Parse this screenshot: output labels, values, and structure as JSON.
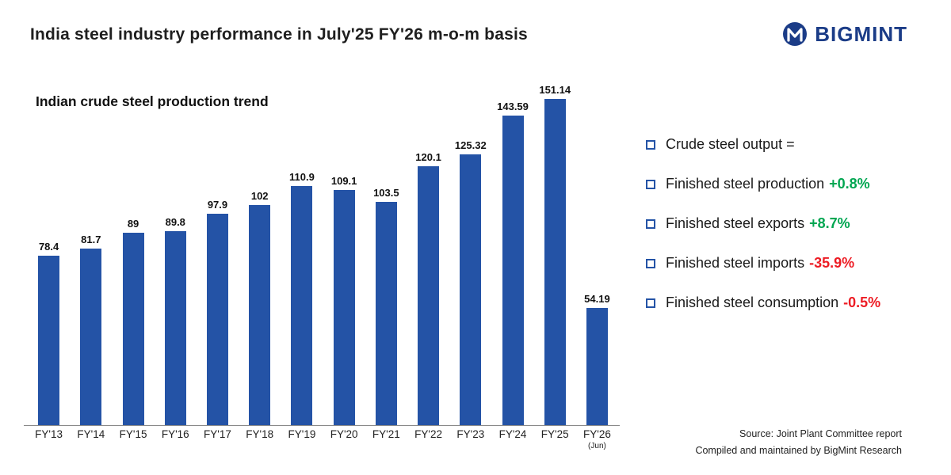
{
  "header": {
    "title": "India steel industry performance in July'25  FY'26 m-o-m basis",
    "brand": "BIGMINT"
  },
  "chart_data": {
    "type": "bar",
    "title": "Indian crude steel production trend",
    "categories": [
      "FY'13",
      "FY'14",
      "FY'15",
      "FY'16",
      "FY'17",
      "FY'18",
      "FY'19",
      "FY'20",
      "FY'21",
      "FY'22",
      "FY'23",
      "FY'24",
      "FY'25",
      "FY'26"
    ],
    "values": [
      78.4,
      81.7,
      89,
      89.8,
      97.9,
      102,
      110.9,
      109.1,
      103.5,
      120.1,
      125.32,
      143.59,
      151.14,
      54.19
    ],
    "value_labels": [
      "78.4",
      "81.7",
      "89",
      "89.8",
      "97.9",
      "102",
      "110.9",
      "109.1",
      "103.5",
      "120.1",
      "125.32",
      "143.59",
      "151.14",
      "54.19"
    ],
    "last_category_note": "(Jun)",
    "xlabel": "",
    "ylabel": "",
    "ylim": [
      0,
      160
    ],
    "grid": false,
    "legend_position": "none",
    "bar_color": "#2453a6"
  },
  "annotations": {
    "items": [
      {
        "label": "Crude steel output =",
        "delta": "",
        "delta_color": ""
      },
      {
        "label": "Finished steel production",
        "delta": "+0.8%",
        "delta_color": "#00a651"
      },
      {
        "label": "Finished steel exports",
        "delta": "+8.7%",
        "delta_color": "#00a651"
      },
      {
        "label": "Finished steel imports",
        "delta": "-35.9%",
        "delta_color": "#ed1c24"
      },
      {
        "label": "Finished steel consumption",
        "delta": "-0.5%",
        "delta_color": "#ed1c24"
      }
    ]
  },
  "footer": {
    "source": "Source: Joint Plant Committee report",
    "compiled": "Compiled and maintained by BigMint Research"
  },
  "colors": {
    "bar": "#2453a6",
    "brand": "#1b3c87",
    "green": "#00a651",
    "red": "#ed1c24"
  }
}
